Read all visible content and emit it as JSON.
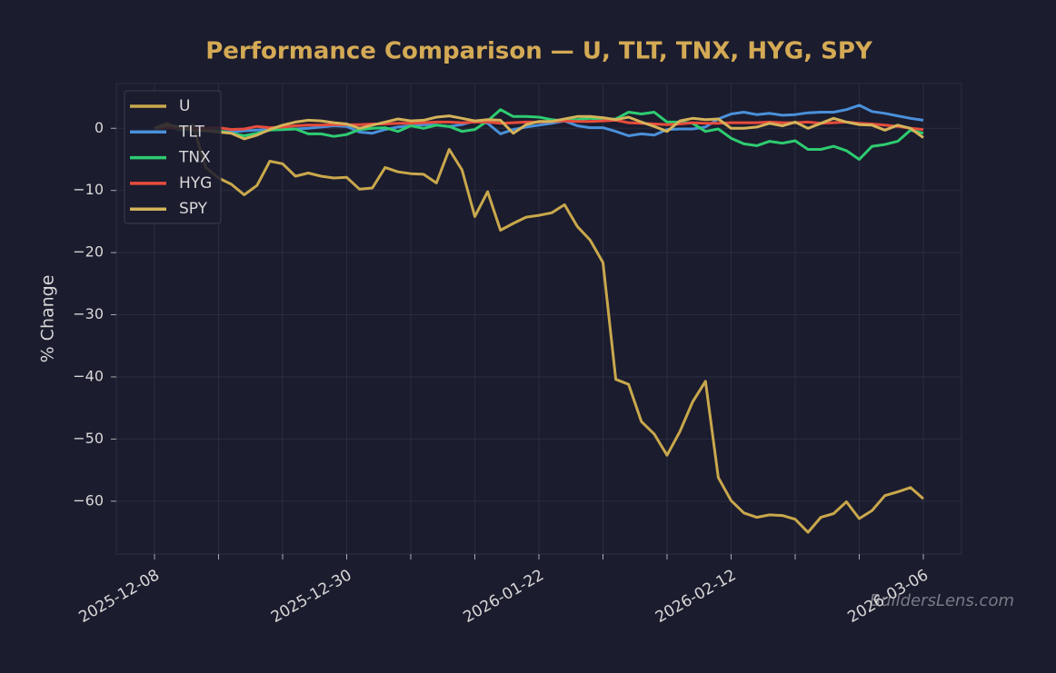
{
  "chart_data": {
    "type": "line",
    "title": "Performance Comparison — U, TLT, TNX, HYG, SPY",
    "y_label": "% Change",
    "watermark": "BuildersLens.com",
    "categories": [
      "2025-12-08",
      null,
      null,
      null,
      null,
      null,
      null,
      null,
      null,
      null,
      null,
      null,
      null,
      null,
      null,
      "2025-12-30",
      null,
      null,
      null,
      null,
      null,
      null,
      null,
      null,
      null,
      null,
      null,
      null,
      null,
      null,
      "2026-01-22",
      null,
      null,
      null,
      null,
      null,
      null,
      null,
      null,
      null,
      null,
      null,
      null,
      null,
      null,
      "2026-02-12",
      null,
      null,
      null,
      null,
      null,
      null,
      null,
      null,
      null,
      null,
      null,
      null,
      null,
      null,
      "2026-03-06"
    ],
    "ylim": [
      -68.5,
      7.2
    ],
    "yticks": [
      {
        "value": -60,
        "label": "−60"
      },
      {
        "value": -50,
        "label": "−50"
      },
      {
        "value": -40,
        "label": "−40"
      },
      {
        "value": -30,
        "label": "−30"
      },
      {
        "value": -20,
        "label": "−20"
      },
      {
        "value": -10,
        "label": "−10"
      },
      0
    ],
    "grid": true,
    "legend": "upper-left",
    "series": [
      {
        "name": "U",
        "color": "#c9a84c",
        "values": [
          0,
          0.8,
          -0.3,
          0.5,
          -6.3,
          -8,
          -9,
          -10.7,
          -9.2,
          -5.3,
          -5.7,
          -7.7,
          -7.2,
          -7.7,
          -8,
          -7.9,
          -9.8,
          -9.6,
          -6.3,
          -7,
          -7.3,
          -7.4,
          -8.8,
          -3.4,
          -6.7,
          -14.2,
          -10.2,
          -16.4,
          -15.3,
          -14.3,
          -14,
          -13.6,
          -12.3,
          -15.8,
          -18,
          -21.6,
          -40.4,
          -41.2,
          -47.2,
          -49.2,
          -52.6,
          -48.8,
          -44,
          -40.7,
          -56.2,
          -59.9,
          -61.9,
          -62.6,
          -62.2,
          -62.3,
          -62.9,
          -65,
          -62.6,
          -62,
          -60.1,
          -62.8,
          -61.5,
          -59.1,
          -58.5,
          -57.8,
          -59.6
        ]
      },
      {
        "name": "TLT",
        "color": "#4a90d9",
        "values": [
          0,
          0.2,
          -0.2,
          -0.3,
          -0.4,
          -0.5,
          -0.6,
          -0.4,
          -0.3,
          -0.2,
          -0.2,
          -0.1,
          0,
          0.2,
          0.4,
          0.3,
          -0.6,
          -0.8,
          -0.2,
          0.2,
          0.4,
          0.6,
          0.5,
          0.3,
          0.6,
          1.2,
          0.8,
          -0.9,
          -0.2,
          0.2,
          0.5,
          0.8,
          1.2,
          0.4,
          0.1,
          0.1,
          -0.5,
          -1.2,
          -0.9,
          -1.1,
          -0.2,
          -0.1,
          -0.1,
          0.2,
          1.5,
          2.3,
          2.6,
          2.2,
          2.4,
          2.1,
          2.2,
          2.5,
          2.6,
          2.6,
          3,
          3.7,
          2.7,
          2.4,
          2,
          1.6,
          1.3
        ]
      },
      {
        "name": "TNX",
        "color": "#2ecc71",
        "values": [
          0,
          0.3,
          -0.2,
          -0.1,
          -0.3,
          -0.4,
          -0.8,
          -1.2,
          -0.8,
          -0.3,
          -0.2,
          -0.1,
          -0.9,
          -0.9,
          -1.3,
          -1,
          -0.2,
          0,
          0.1,
          -0.5,
          0.4,
          0,
          0.5,
          0.3,
          -0.5,
          -0.2,
          1.2,
          3,
          1.9,
          1.9,
          1.8,
          1.4,
          1.2,
          1.4,
          1.6,
          1.4,
          1.5,
          2.6,
          2.3,
          2.6,
          1,
          1,
          0.8,
          -0.5,
          -0.1,
          -1.6,
          -2.5,
          -2.8,
          -2.1,
          -2.4,
          -2,
          -3.4,
          -3.4,
          -2.9,
          -3.6,
          -5,
          -2.9,
          -2.6,
          -2.1,
          -0.3,
          -0.8
        ]
      },
      {
        "name": "HYG",
        "color": "#e74c3c",
        "values": [
          0,
          0.1,
          0,
          -0.1,
          0,
          0.1,
          -0.2,
          -0.1,
          0.3,
          0.1,
          0.2,
          0.4,
          0.5,
          0.5,
          0.6,
          0.6,
          0.6,
          0.7,
          0.7,
          0.8,
          0.8,
          0.9,
          1,
          1,
          0.9,
          1,
          1,
          0.8,
          0.9,
          1,
          1,
          1.1,
          1.2,
          1.1,
          1.1,
          1.2,
          1.3,
          0.9,
          0.8,
          0.7,
          0.6,
          0.7,
          0.9,
          0.8,
          0.8,
          0.9,
          0.9,
          0.9,
          1,
          0.9,
          0.9,
          1,
          0.8,
          0.9,
          1,
          0.8,
          0.7,
          0.5,
          0.3,
          0,
          -0.2
        ]
      },
      {
        "name": "SPY",
        "color": "#d4b35a",
        "values": [
          0,
          0.5,
          0.2,
          -0.3,
          -0.4,
          -0.6,
          -0.8,
          -1.7,
          -1.1,
          -0.2,
          0.5,
          1,
          1.3,
          1.2,
          0.9,
          0.7,
          0,
          0.5,
          1,
          1.5,
          1.2,
          1.3,
          1.8,
          2,
          1.6,
          1.2,
          1.4,
          1.3,
          -0.8,
          0.6,
          1.1,
          1.1,
          1.5,
          1.9,
          1.9,
          1.7,
          1.4,
          1.8,
          1,
          0.3,
          -0.5,
          1.2,
          1.6,
          1.4,
          1.5,
          0,
          0,
          0.2,
          0.8,
          0.4,
          1,
          0,
          0.8,
          1.6,
          1,
          0.6,
          0.5,
          -0.3,
          0.5,
          0,
          -1.5
        ]
      }
    ]
  }
}
